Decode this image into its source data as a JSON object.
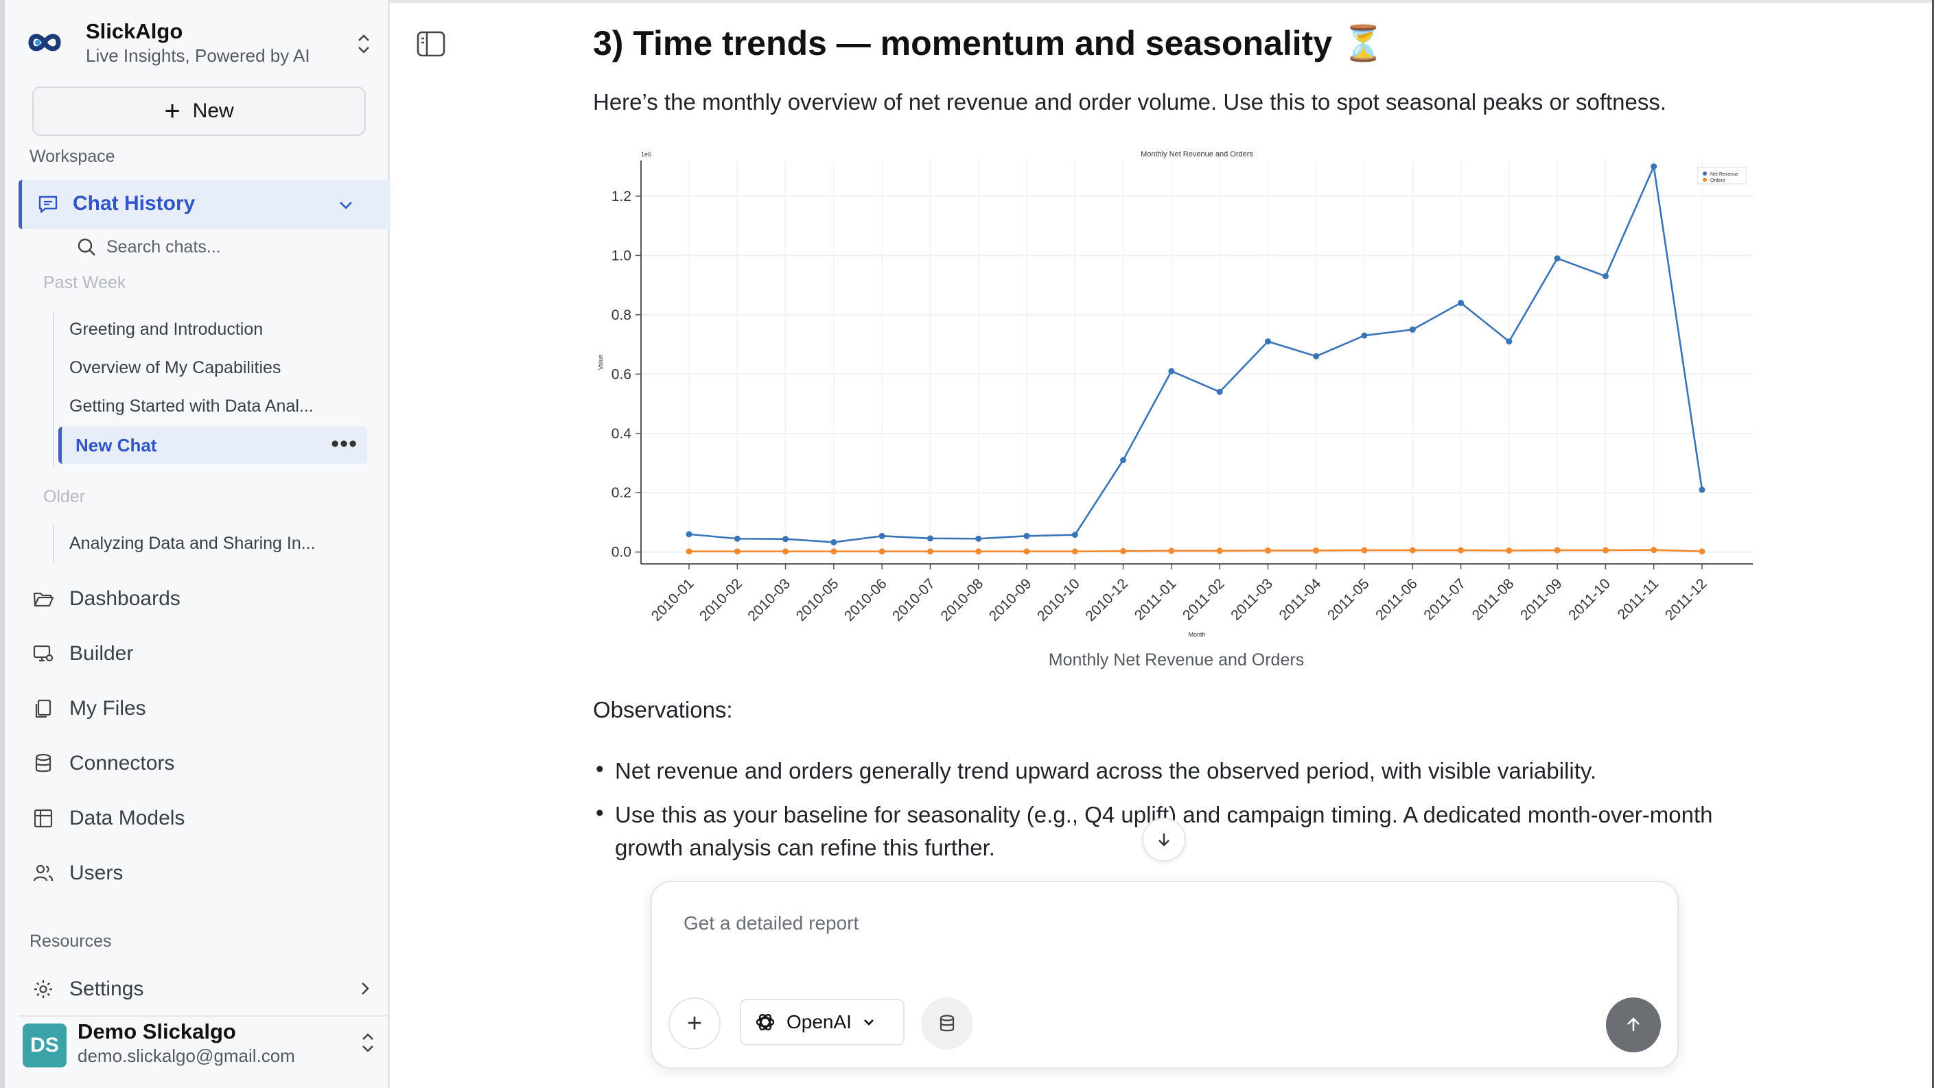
{
  "brand": {
    "name": "SlickAlgo",
    "tagline": "Live Insights, Powered by AI"
  },
  "sidebar": {
    "new_label": "New",
    "workspace_label": "Workspace",
    "chat_history_label": "Chat History",
    "search_placeholder": "Search chats...",
    "groups": [
      {
        "label": "Past Week",
        "items": [
          "Greeting and Introduction",
          "Overview of My Capabilities",
          "Getting Started with Data Anal...",
          "New Chat"
        ]
      },
      {
        "label": "Older",
        "items": [
          "Analyzing Data and Sharing In..."
        ]
      }
    ],
    "nav": [
      "Dashboards",
      "Builder",
      "My Files",
      "Connectors",
      "Data Models",
      "Users"
    ],
    "resources_label": "Resources",
    "settings_label": "Settings"
  },
  "user": {
    "initials": "DS",
    "name": "Demo Slickalgo",
    "email": "demo.slickalgo@gmail.com"
  },
  "main": {
    "title": "3) Time trends — momentum and seasonality ⏳",
    "intro": "Here’s the monthly overview of net revenue and order volume. Use this to spot seasonal peaks or softness.",
    "chart_caption": "Monthly Net Revenue and Orders",
    "observations_label": "Observations:",
    "bullets": [
      "Net revenue and orders generally trend upward across the observed period, with visible variability.",
      "Use this as your baseline for seasonality (e.g., Q4 uplift) and campaign timing. A dedicated month-over-month growth analysis can refine this further."
    ]
  },
  "composer": {
    "placeholder": "Get a detailed report",
    "model_label": "OpenAI"
  },
  "colors": {
    "accent": "#3d5fc4",
    "series_revenue": "#3a74b8",
    "series_orders": "#f28a30",
    "avatar": "#3aa3a8"
  },
  "chart_data": {
    "type": "line",
    "title": "Monthly Net Revenue and Orders",
    "xlabel": "Month",
    "ylabel": "Value",
    "y_scale_label": "1e6",
    "ylim": [
      -0.04,
      1.32
    ],
    "yticks": [
      0.0,
      0.2,
      0.4,
      0.6,
      0.8,
      1.0,
      1.2
    ],
    "legend_position": "top-right",
    "categories": [
      "2010-01",
      "2010-02",
      "2010-03",
      "2010-05",
      "2010-06",
      "2010-07",
      "2010-08",
      "2010-09",
      "2010-10",
      "2010-12",
      "2011-01",
      "2011-02",
      "2011-03",
      "2011-04",
      "2011-05",
      "2011-06",
      "2011-07",
      "2011-08",
      "2011-09",
      "2011-10",
      "2011-11",
      "2011-12"
    ],
    "series": [
      {
        "name": "Net Revenue",
        "values": [
          0.06,
          0.045,
          0.044,
          0.033,
          0.054,
          0.046,
          0.045,
          0.054,
          0.058,
          0.31,
          0.61,
          0.54,
          0.71,
          0.66,
          0.73,
          0.75,
          0.84,
          0.71,
          0.99,
          0.93,
          1.3,
          0.21
        ]
      },
      {
        "name": "Orders",
        "values": [
          0.002,
          0.002,
          0.002,
          0.002,
          0.002,
          0.002,
          0.002,
          0.002,
          0.002,
          0.003,
          0.004,
          0.004,
          0.005,
          0.005,
          0.006,
          0.006,
          0.006,
          0.005,
          0.006,
          0.006,
          0.007,
          0.002
        ]
      }
    ]
  }
}
